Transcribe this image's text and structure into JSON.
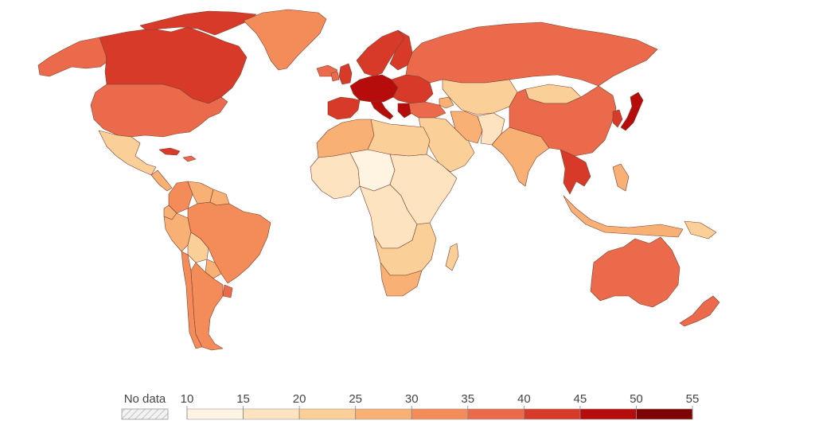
{
  "legend": {
    "no_data_label": "No data",
    "no_data_pattern": "hatched",
    "tick_labels": [
      "10",
      "15",
      "20",
      "25",
      "30",
      "35",
      "40",
      "45",
      "50",
      "55"
    ],
    "bins": [
      {
        "from": 10,
        "to": 15,
        "color": "#fff3e2"
      },
      {
        "from": 15,
        "to": 20,
        "color": "#fde3bf"
      },
      {
        "from": 20,
        "to": 25,
        "color": "#fbcf98"
      },
      {
        "from": 25,
        "to": 30,
        "color": "#f8b074"
      },
      {
        "from": 30,
        "to": 35,
        "color": "#f48c5a"
      },
      {
        "from": 35,
        "to": 40,
        "color": "#eb6a4b"
      },
      {
        "from": 40,
        "to": 45,
        "color": "#d83a2a"
      },
      {
        "from": 45,
        "to": 50,
        "color": "#b70c0c"
      },
      {
        "from": 50,
        "to": 55,
        "color": "#7e0303"
      }
    ]
  },
  "map": {
    "type": "choropleth-world",
    "regions": [
      {
        "id": "canada",
        "bin": 6
      },
      {
        "id": "alaska",
        "bin": 5
      },
      {
        "id": "arctic-islands",
        "bin": 6
      },
      {
        "id": "greenland",
        "bin": 4
      },
      {
        "id": "iceland",
        "bin": 5
      },
      {
        "id": "united-states",
        "bin": 5
      },
      {
        "id": "mexico",
        "bin": 2
      },
      {
        "id": "central-america",
        "bin": 3
      },
      {
        "id": "cuba",
        "bin": 6
      },
      {
        "id": "caribbean",
        "bin": 5
      },
      {
        "id": "colombia",
        "bin": 4
      },
      {
        "id": "venezuela",
        "bin": 3
      },
      {
        "id": "guianas",
        "bin": 3
      },
      {
        "id": "ecuador",
        "bin": 3
      },
      {
        "id": "peru",
        "bin": 3
      },
      {
        "id": "brazil",
        "bin": 4
      },
      {
        "id": "bolivia",
        "bin": 2
      },
      {
        "id": "paraguay",
        "bin": 3
      },
      {
        "id": "uruguay",
        "bin": 5
      },
      {
        "id": "chile",
        "bin": 4
      },
      {
        "id": "argentina",
        "bin": 4
      },
      {
        "id": "scandinavia",
        "bin": 6
      },
      {
        "id": "finland",
        "bin": 6
      },
      {
        "id": "uk",
        "bin": 6
      },
      {
        "id": "ireland",
        "bin": 5
      },
      {
        "id": "western-europe",
        "bin": 7
      },
      {
        "id": "iberia",
        "bin": 6
      },
      {
        "id": "italy",
        "bin": 7
      },
      {
        "id": "eastern-europe",
        "bin": 6
      },
      {
        "id": "greece",
        "bin": 7
      },
      {
        "id": "russia",
        "bin": 5
      },
      {
        "id": "turkey",
        "bin": 5
      },
      {
        "id": "kazakhstan-central-asia",
        "bin": 2
      },
      {
        "id": "caucasus",
        "bin": 3
      },
      {
        "id": "middle-east",
        "bin": 2
      },
      {
        "id": "iran",
        "bin": 3
      },
      {
        "id": "afghanistan-pakistan",
        "bin": 1
      },
      {
        "id": "india",
        "bin": 3
      },
      {
        "id": "china",
        "bin": 5
      },
      {
        "id": "mongolia",
        "bin": 2
      },
      {
        "id": "korea",
        "bin": 6
      },
      {
        "id": "japan",
        "bin": 7
      },
      {
        "id": "southeast-asia",
        "bin": 6
      },
      {
        "id": "malaysia-indonesia",
        "bin": 3
      },
      {
        "id": "philippines",
        "bin": 3
      },
      {
        "id": "papua",
        "bin": 2
      },
      {
        "id": "australia",
        "bin": 5
      },
      {
        "id": "new-zealand",
        "bin": 5
      },
      {
        "id": "north-africa-maghreb",
        "bin": 3
      },
      {
        "id": "egypt-libya",
        "bin": 2
      },
      {
        "id": "sahel",
        "bin": 0
      },
      {
        "id": "west-africa",
        "bin": 1
      },
      {
        "id": "central-africa",
        "bin": 1
      },
      {
        "id": "east-africa",
        "bin": 1
      },
      {
        "id": "southern-africa",
        "bin": 2
      },
      {
        "id": "south-africa",
        "bin": 3
      },
      {
        "id": "madagascar",
        "bin": 2
      }
    ]
  }
}
